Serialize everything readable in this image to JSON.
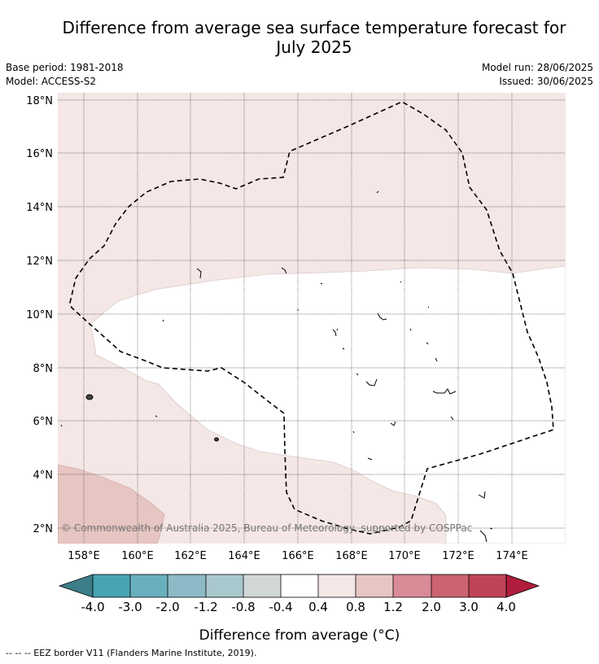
{
  "title": {
    "line1": "Difference from average sea surface temperature forecast for",
    "line2": "July 2025"
  },
  "meta": {
    "base_period": "Base period: 1981-2018",
    "model": "Model: ACCESS-S2",
    "model_run": "Model run: 28/06/2025",
    "issued": "Issued: 30/06/2025"
  },
  "map": {
    "lat_labels": [
      "18°N",
      "16°N",
      "14°N",
      "12°N",
      "10°N",
      "8°N",
      "6°N",
      "4°N",
      "2°N"
    ],
    "lon_labels": [
      "158°E",
      "160°E",
      "162°E",
      "164°E",
      "166°E",
      "168°E",
      "170°E",
      "172°E",
      "174°E"
    ],
    "copyright": "© Commonwealth of Australia 2025, Bureau of Meteorology, supported by COSPPac",
    "region_colors": {
      "light_warm": "#f4e7e6",
      "neutral": "#ffffff",
      "warm": "#e6c5c2",
      "border": "#000000"
    }
  },
  "colorbar": {
    "tick_labels": [
      "-4.0",
      "-3.0",
      "-2.0",
      "-1.2",
      "-0.8",
      "-0.4",
      "0.4",
      "0.8",
      "1.2",
      "2.0",
      "3.0",
      "4.0"
    ],
    "colors": [
      "#3b7e8a",
      "#48a3b5",
      "#6aafbe",
      "#8cbac6",
      "#a9c8cd",
      "#d2d8d8",
      "#ffffff",
      "#f4e7e6",
      "#e6c5c2",
      "#d98b96",
      "#cb6470",
      "#c04457",
      "#b01c3c"
    ],
    "label": "Difference from average (°C)"
  },
  "footnote": "--  --  -- EEZ border V11 (Flanders Marine Institute, 2019)."
}
